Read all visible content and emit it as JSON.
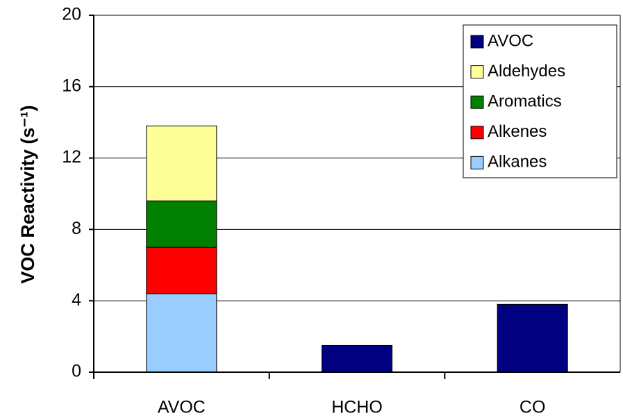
{
  "chart_data": {
    "type": "stacked_bar",
    "y_label": "VOC Reactivity (s⁻¹)",
    "categories": [
      "AVOC",
      "HCHO",
      "CO"
    ],
    "series": [
      {
        "name": "Alkanes",
        "color": "#99ccff",
        "values": [
          4.4,
          null,
          null
        ]
      },
      {
        "name": "Alkenes",
        "color": "#ff0000",
        "values": [
          2.6,
          null,
          null
        ]
      },
      {
        "name": "Aromatics",
        "color": "#008000",
        "values": [
          2.6,
          null,
          null
        ]
      },
      {
        "name": "Aldehydes",
        "color": "#ffff99",
        "values": [
          4.2,
          null,
          null
        ]
      },
      {
        "name": "AVOC",
        "color": "#000080",
        "values": [
          null,
          1.5,
          3.8
        ]
      }
    ],
    "ylim": [
      0,
      20
    ],
    "yticks": [
      0,
      4,
      8,
      12,
      16,
      20
    ],
    "grid": true,
    "legend": "upper right"
  }
}
